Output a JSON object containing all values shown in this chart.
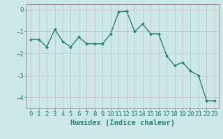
{
  "x": [
    0,
    1,
    2,
    3,
    4,
    5,
    6,
    7,
    8,
    9,
    10,
    11,
    12,
    13,
    14,
    15,
    16,
    17,
    18,
    19,
    20,
    21,
    22,
    23
  ],
  "y": [
    -1.35,
    -1.35,
    -1.7,
    -0.9,
    -1.45,
    -1.7,
    -1.25,
    -1.55,
    -1.55,
    -1.55,
    -1.1,
    -0.1,
    -0.07,
    -1.0,
    -0.65,
    -1.1,
    -1.1,
    -2.1,
    -2.55,
    -2.4,
    -2.8,
    -3.0,
    -4.15,
    -4.15
  ],
  "line_color": "#2e7d6e",
  "marker": "D",
  "marker_size": 2.0,
  "bg_color": "#cce8e8",
  "grid_color": "#c8b8b8",
  "xlabel": "Humidex (Indice chaleur)",
  "xlim": [
    -0.5,
    23.5
  ],
  "ylim": [
    -4.5,
    0.25
  ],
  "yticks": [
    0,
    -1,
    -2,
    -3,
    -4
  ],
  "xticks": [
    0,
    1,
    2,
    3,
    4,
    5,
    6,
    7,
    8,
    9,
    10,
    11,
    12,
    13,
    14,
    15,
    16,
    17,
    18,
    19,
    20,
    21,
    22,
    23
  ],
  "tick_color": "#2e7d6e",
  "xlabel_fontsize": 7.5,
  "tick_fontsize": 6.5,
  "line_width": 1.0,
  "spine_color": "#888888"
}
